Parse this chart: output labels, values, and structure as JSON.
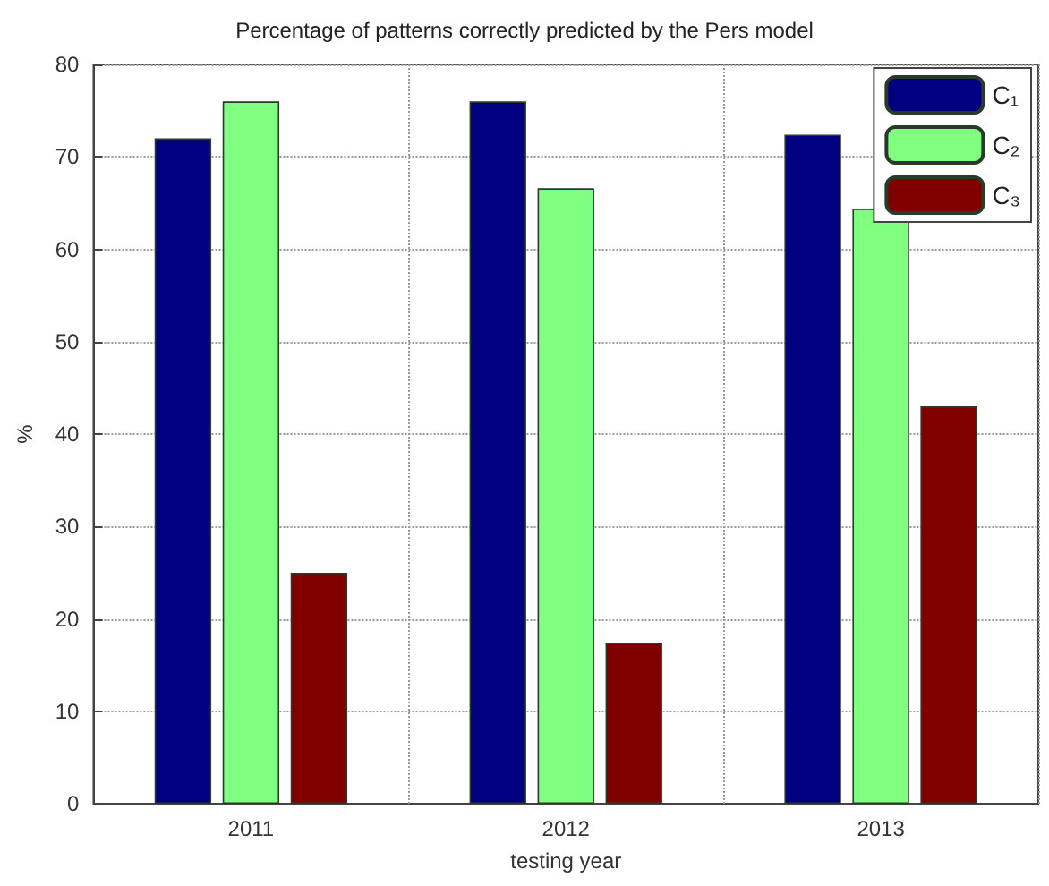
{
  "chart_data": {
    "type": "bar",
    "title": "Percentage of patterns correctly predicted by the Pers model",
    "xlabel": "testing year",
    "ylabel": "%",
    "categories": [
      "2011",
      "2012",
      "2013"
    ],
    "series": [
      {
        "name": "C₁",
        "color": "#000080",
        "values": [
          72,
          76,
          72.4
        ]
      },
      {
        "name": "C₂",
        "color": "#80ff80",
        "values": [
          76,
          66.6,
          64.4
        ]
      },
      {
        "name": "C₃",
        "color": "#800000",
        "values": [
          25,
          17.4,
          43
        ]
      }
    ],
    "ylim": [
      0,
      80
    ],
    "yticks": [
      0,
      10,
      20,
      30,
      40,
      50,
      60,
      70,
      80
    ],
    "grid": true,
    "legend": "top right"
  }
}
